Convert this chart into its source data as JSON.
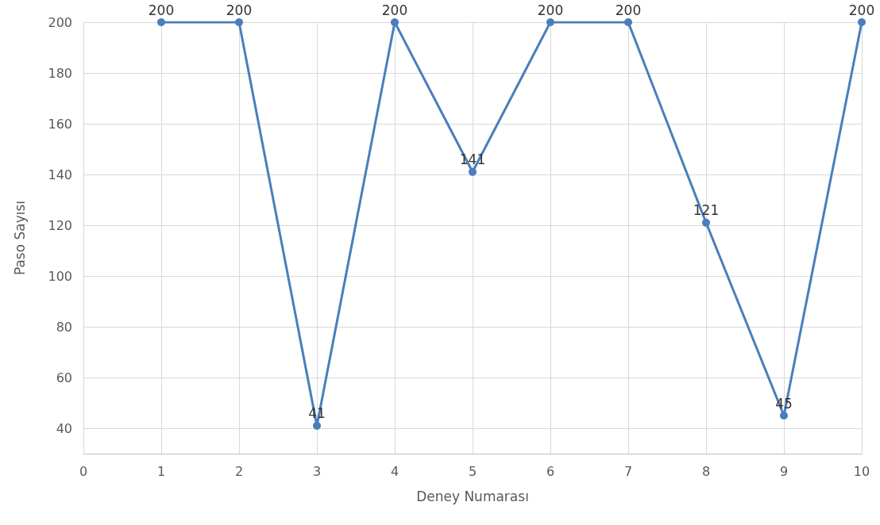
{
  "chart_data": {
    "type": "line",
    "xlabel": "Deney Numarası",
    "ylabel": "Paso Sayısı",
    "x": [
      1,
      2,
      3,
      4,
      5,
      6,
      7,
      8,
      9,
      10
    ],
    "series": [
      {
        "color": "#4a7ebb",
        "values": [
          200,
          200,
          41,
          200,
          141,
          200,
          200,
          121,
          45,
          200
        ]
      }
    ],
    "xlim": [
      0,
      10
    ],
    "xticks": [
      0,
      1,
      2,
      3,
      4,
      5,
      6,
      7,
      8,
      9,
      10
    ],
    "ylim": [
      30,
      200
    ],
    "yticks": [
      40,
      60,
      80,
      100,
      120,
      140,
      160,
      180,
      200
    ],
    "grid": true,
    "marker": "circle",
    "line_style": "solid",
    "data_labels": true
  }
}
